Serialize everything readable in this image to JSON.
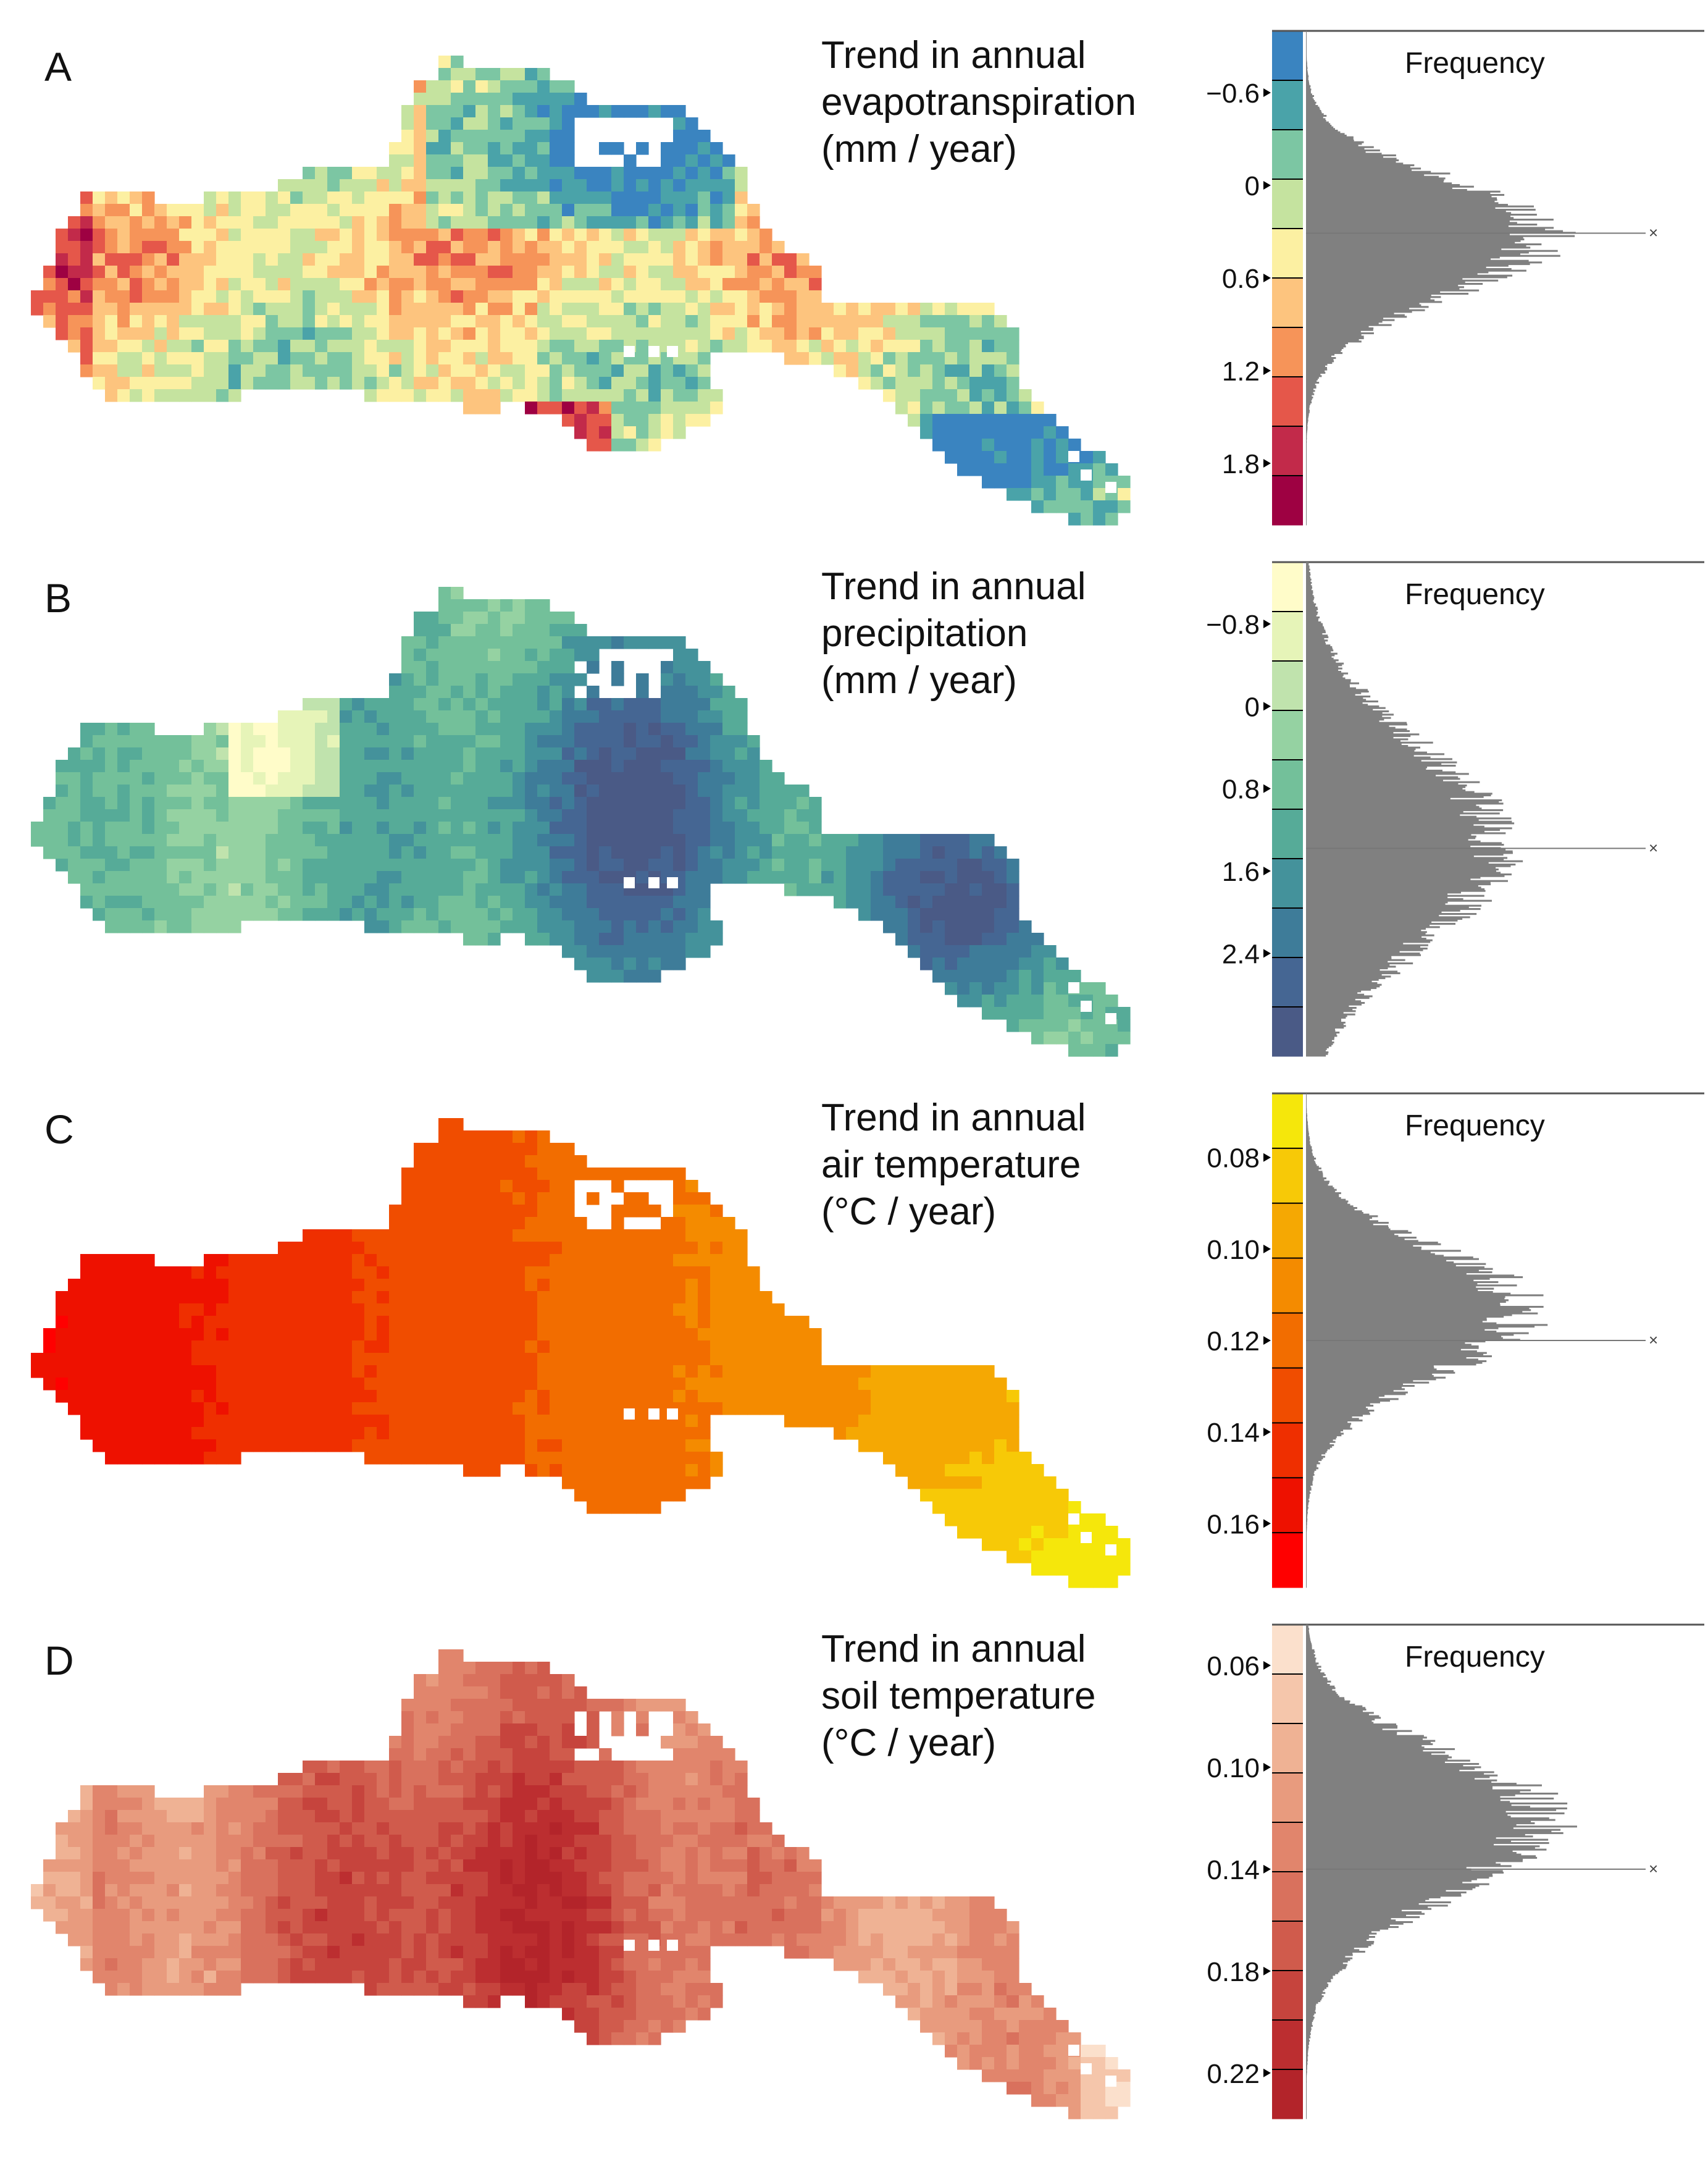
{
  "colors": {
    "panel_a_bins": [
      "#3a84c0",
      "#4aa3a9",
      "#7cc6a3",
      "#c5e39f",
      "#fcf0a2",
      "#fdc47e",
      "#f69459",
      "#e5574a",
      "#c22a4a",
      "#9e0142"
    ],
    "panel_b_bins": [
      "#fffcc9",
      "#e6f4b8",
      "#c0e3ad",
      "#95d2a2",
      "#73c09a",
      "#56ab98",
      "#44929b",
      "#3e7c99",
      "#456693",
      "#4a5a86"
    ],
    "panel_c_bins": [
      "#f5e70b",
      "#f7c907",
      "#f5a803",
      "#f48b00",
      "#f26d00",
      "#f04d00",
      "#ef2f00",
      "#ee1100",
      "#ff0000"
    ],
    "panel_d_bins": [
      "#fbe0cc",
      "#f5c6ab",
      "#efb294",
      "#e89b7e",
      "#e1856c",
      "#d9715d",
      "#d05b4c",
      "#c6443d",
      "#bc2e30",
      "#b3242a"
    ],
    "histogram_fill": "#808080",
    "axis": "#555555"
  },
  "chart_data": [
    {
      "type": "histogram",
      "panel_label": "A",
      "title": [
        "Trend in annual",
        "evapotranspiration",
        "(mm / year)"
      ],
      "legend_label": "Frequency",
      "yticks": [
        "−0.6",
        "0",
        "0.6",
        "1.2",
        "1.8"
      ],
      "ytick_values": [
        -0.6,
        0,
        0.6,
        1.2,
        1.8
      ],
      "ylim": [
        -1.0,
        2.2
      ],
      "marker_value": 0.31,
      "map_palette": "panel_a_bins",
      "mode": 0.3,
      "spread": 0.33,
      "skew": 1.2,
      "histogram_peak_frac": 0.98
    },
    {
      "type": "histogram",
      "panel_label": "B",
      "title": [
        "Trend in annual",
        "precipitation",
        "(mm / year)"
      ],
      "legend_label": "Frequency",
      "yticks": [
        "−0.8",
        "0",
        "0.8",
        "1.6",
        "2.4"
      ],
      "ytick_values": [
        -0.8,
        0,
        0.8,
        1.6,
        2.4
      ],
      "ylim": [
        -1.4,
        3.4
      ],
      "marker_value": 1.38,
      "map_palette": "panel_b_bins",
      "mode": 1.35,
      "spread": 0.95,
      "skew": 1.0,
      "histogram_peak_frac": 0.78
    },
    {
      "type": "histogram",
      "panel_label": "C",
      "title": [
        "Trend in annual",
        "air temperature",
        "(°C / year)"
      ],
      "legend_label": "Frequency",
      "yticks": [
        "0.08",
        "0.10",
        "0.12",
        "0.14",
        "0.16"
      ],
      "ytick_values": [
        0.08,
        0.1,
        0.12,
        0.14,
        0.16
      ],
      "ylim": [
        0.066,
        0.174
      ],
      "marker_value": 0.12,
      "map_palette": "panel_c_bins",
      "mode": 0.113,
      "spread": 0.013,
      "skew": 1.1,
      "histogram_peak_frac": 0.88
    },
    {
      "type": "histogram",
      "panel_label": "D",
      "title": [
        "Trend in annual",
        "soil temperature",
        "(°C / year)"
      ],
      "legend_label": "Frequency",
      "yticks": [
        "0.06",
        "0.10",
        "0.14",
        "0.18",
        "0.22"
      ],
      "ytick_values": [
        0.06,
        0.1,
        0.14,
        0.18,
        0.22
      ],
      "ylim": [
        0.044,
        0.238
      ],
      "marker_value": 0.14,
      "map_palette": "panel_d_bins",
      "mode": 0.12,
      "spread": 0.025,
      "skew": 1.2,
      "histogram_peak_frac": 0.96
    }
  ]
}
